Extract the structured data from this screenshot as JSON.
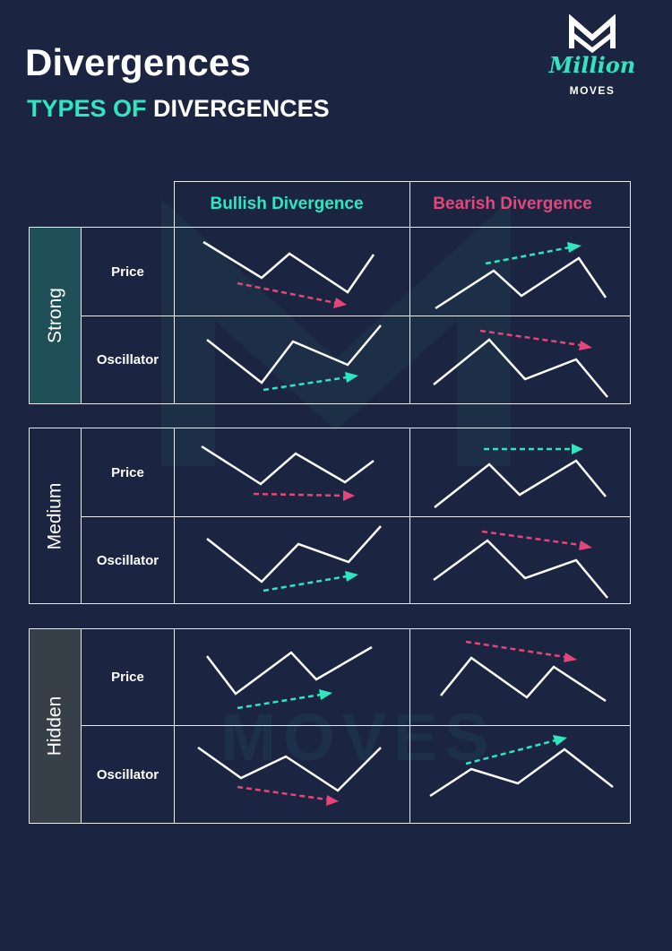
{
  "title": "Divergences",
  "subtitle": {
    "accent": "TYPES OF",
    "rest": "DIVERGENCES"
  },
  "logo": {
    "script": "Million",
    "moves": "MOVES"
  },
  "watermark": "MOVES",
  "columns": {
    "bullish": "Bullish Divergence",
    "bearish": "Bearish Divergence"
  },
  "colors": {
    "background": "#1b2440",
    "bullish": "#2ee6c0",
    "bearish": "#e6457a",
    "line": "#ffffff"
  },
  "sections": [
    {
      "label": "Strong",
      "fill": "#1f4f57",
      "rows": [
        {
          "label": "Price"
        },
        {
          "label": "Oscillator"
        }
      ]
    },
    {
      "label": "Medium",
      "fill": "#1b2440",
      "rows": [
        {
          "label": "Price"
        },
        {
          "label": "Oscillator"
        }
      ]
    },
    {
      "label": "Hidden",
      "fill": "#373f48",
      "rows": [
        {
          "label": "Price"
        },
        {
          "label": "Oscillator"
        }
      ]
    }
  ]
}
